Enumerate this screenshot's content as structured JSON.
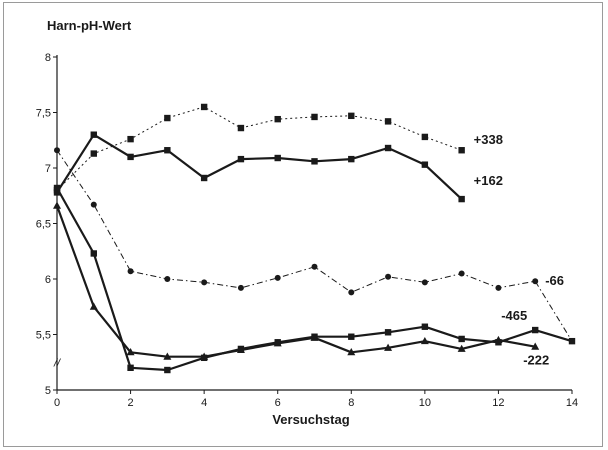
{
  "chart_data": {
    "type": "line",
    "title": "Harn-pH-Wert",
    "xlabel": "Versuchstag",
    "ylabel": "",
    "xlim": [
      0,
      14
    ],
    "ylim": [
      5,
      8
    ],
    "x_ticks": [
      0,
      2,
      4,
      6,
      8,
      10,
      12,
      14
    ],
    "x_tick_labels": [
      "0",
      "2",
      "4",
      "6",
      "8",
      "10",
      "12",
      "14"
    ],
    "y_ticks": [
      5,
      5.5,
      6,
      6.5,
      7,
      7.5,
      8
    ],
    "y_tick_labels": [
      "5",
      "5,5",
      "6",
      "6,5",
      "7",
      "7,5",
      "8"
    ],
    "axis_break_mark": "//",
    "grid": false,
    "legend": "none",
    "line_color": "#1a1a1a",
    "series": [
      {
        "name": "+338",
        "marker": "square",
        "line_style": "dotted",
        "x": [
          0,
          1,
          2,
          3,
          4,
          5,
          6,
          7,
          8,
          9,
          10,
          11
        ],
        "y": [
          6.8,
          7.13,
          7.26,
          7.45,
          7.55,
          7.36,
          7.44,
          7.46,
          7.47,
          7.42,
          7.28,
          7.16
        ]
      },
      {
        "name": "+162",
        "marker": "square",
        "line_style": "solid-thick",
        "x": [
          0,
          1,
          2,
          3,
          4,
          5,
          6,
          7,
          8,
          9,
          10,
          11
        ],
        "y": [
          6.78,
          7.3,
          7.1,
          7.16,
          6.91,
          7.08,
          7.09,
          7.06,
          7.08,
          7.18,
          7.03,
          6.72
        ]
      },
      {
        "name": "-66",
        "marker": "circle",
        "line_style": "dashdot",
        "x": [
          0,
          1,
          2,
          3,
          4,
          5,
          6,
          7,
          8,
          9,
          10,
          11,
          12,
          13,
          14
        ],
        "y": [
          7.16,
          6.67,
          6.07,
          6.0,
          5.97,
          5.92,
          6.01,
          6.11,
          5.88,
          6.02,
          5.97,
          6.05,
          5.92,
          5.98,
          5.44
        ]
      },
      {
        "name": "-465",
        "marker": "square",
        "line_style": "solid-thick",
        "x": [
          0,
          1,
          2,
          3,
          4,
          5,
          6,
          7,
          8,
          9,
          10,
          11,
          12,
          13,
          14
        ],
        "y": [
          6.82,
          6.23,
          5.2,
          5.18,
          5.29,
          5.37,
          5.43,
          5.48,
          5.48,
          5.52,
          5.57,
          5.46,
          5.43,
          5.54,
          5.44
        ]
      },
      {
        "name": "-222",
        "marker": "triangle",
        "line_style": "solid-thick",
        "x": [
          0,
          1,
          2,
          3,
          4,
          5,
          6,
          7,
          8,
          9,
          10,
          11,
          12,
          13
        ],
        "y": [
          6.66,
          5.75,
          5.34,
          5.3,
          5.3,
          5.36,
          5.42,
          5.47,
          5.34,
          5.38,
          5.44,
          5.37,
          5.45,
          5.39
        ]
      }
    ],
    "series_labels": [
      {
        "text": "+338",
        "series": "+338",
        "near_x": 11
      },
      {
        "text": "+162",
        "series": "+162",
        "near_x": 11
      },
      {
        "text": "-66",
        "series": "-66",
        "near_x": 13
      },
      {
        "text": "-465",
        "series": "-465",
        "near_x": 13
      },
      {
        "text": "-222",
        "series": "-222",
        "near_x": 13
      }
    ]
  }
}
